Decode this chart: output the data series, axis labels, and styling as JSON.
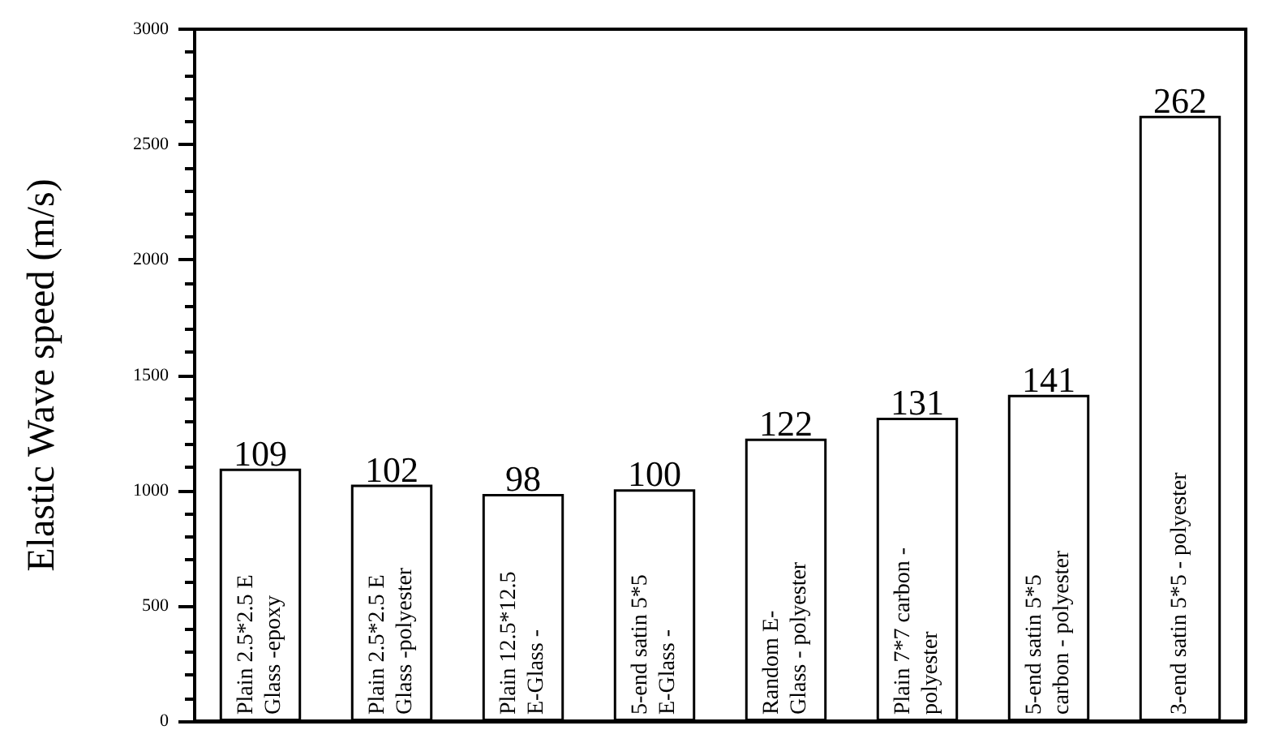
{
  "chart_data": {
    "type": "bar",
    "ylabel": "Elastic Wave speed (m/s)",
    "categories": [
      "Plain 2.5*2.5 E\nGlass -epoxy",
      "Plain 2.5*2.5 E\nGlass -polyester",
      "Plain 12.5*12.5\nE-Glass -",
      "5-end satin 5*5\nE-Glass -",
      "Random E-\nGlass - polyester",
      "Plain 7*7 carbon -\npolyester",
      "5-end satin 5*5\ncarbon - polyester",
      "3-end satin 5*5 - polyester"
    ],
    "values": [
      1095,
      1025,
      985,
      1005,
      1225,
      1315,
      1415,
      2625
    ],
    "annotations": [
      {
        "text": "109",
        "x": "Plain 2.5*2.5 E\nGlass -epoxy",
        "y": 1095
      },
      {
        "text": "102",
        "x": "Plain 2.5*2.5 E\nGlass -polyester",
        "y": 1025
      },
      {
        "text": "98",
        "x": "Plain 12.5*12.5\nE-Glass -",
        "y": 985
      },
      {
        "text": "100",
        "x": "5-end satin 5*5\nE-Glass -",
        "y": 1005
      },
      {
        "text": "122",
        "x": "Random E-\nGlass - polyester",
        "y": 1225
      },
      {
        "text": "131",
        "x": "Plain 7*7 carbon -\npolyester",
        "y": 1315
      },
      {
        "text": "141",
        "x": "5-end satin 5*5\ncarbon - polyester",
        "y": 1415
      },
      {
        "text": "262",
        "x": "3-end satin 5*5 - polyester",
        "y": 2625
      }
    ],
    "color": "#ffffff",
    "ylim": [
      0,
      3000
    ],
    "yticks": [
      0,
      500,
      1000,
      1500,
      2000,
      2500,
      3000
    ],
    "grid": false
  }
}
